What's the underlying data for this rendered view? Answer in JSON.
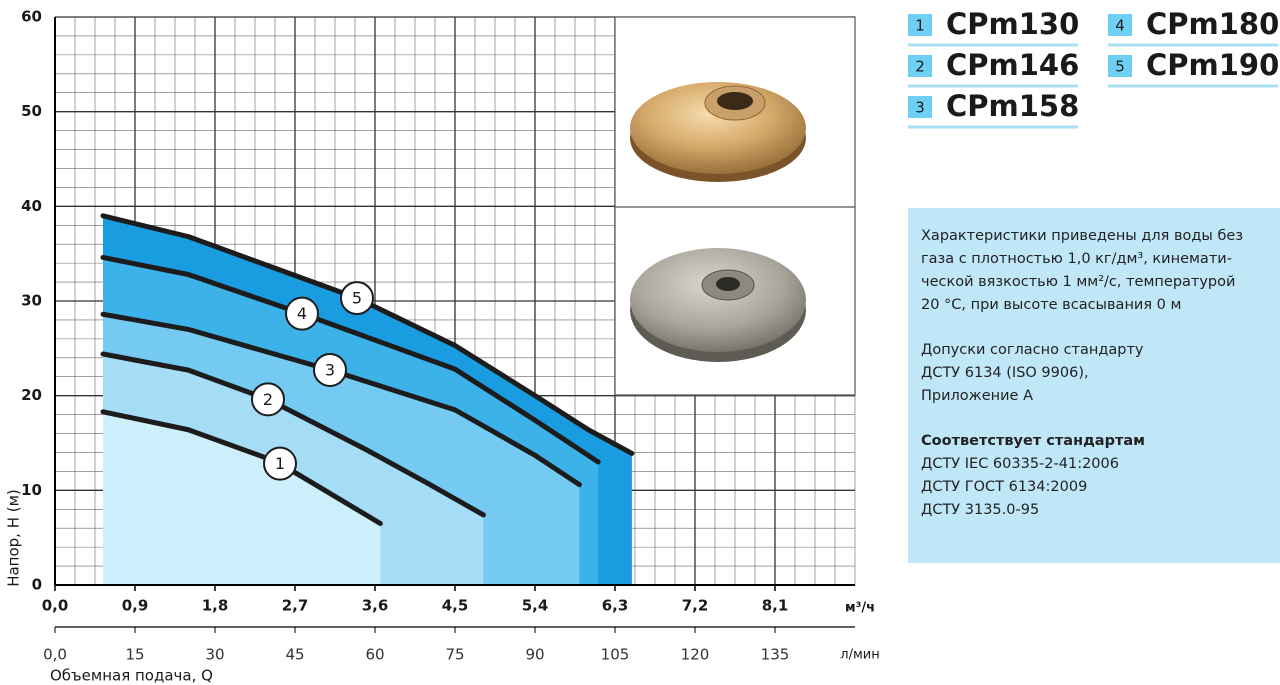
{
  "chart_data": {
    "type": "line",
    "y_label": "Напор, Н (м)",
    "x_unit": "м³/ч",
    "x2_unit": "л/мин",
    "x2_label": "Объемная подача, Q",
    "xlim": [
      0,
      9.0
    ],
    "ylim": [
      0,
      60
    ],
    "x2lim": [
      0,
      150
    ],
    "xticks": [
      {
        "value": 0,
        "label": "0,0"
      },
      {
        "value": 0.9,
        "label": "0,9"
      },
      {
        "value": 1.8,
        "label": "1,8"
      },
      {
        "value": 2.7,
        "label": "2,7"
      },
      {
        "value": 3.6,
        "label": "3,6"
      },
      {
        "value": 4.5,
        "label": "4,5"
      },
      {
        "value": 5.4,
        "label": "5,4"
      },
      {
        "value": 6.3,
        "label": "6,3"
      },
      {
        "value": 7.2,
        "label": "7,2"
      },
      {
        "value": 8.1,
        "label": "8,1"
      }
    ],
    "x2ticks": [
      {
        "value": 0,
        "label": "0,0"
      },
      15,
      30,
      45,
      60,
      75,
      90,
      105,
      120,
      135
    ],
    "yticks": [
      0,
      10,
      20,
      30,
      40,
      50,
      60
    ],
    "grid": true,
    "minor_grid": {
      "x": 4,
      "y": 5
    },
    "line_color": "#1c1c1c",
    "series": [
      {
        "label": "1",
        "name": "CPm130",
        "color": "#cdeefb",
        "x": [
          0.54,
          1.5,
          2.5,
          3.0,
          3.66
        ],
        "values": [
          18.3,
          16.4,
          13.0,
          10.2,
          6.5
        ]
      },
      {
        "label": "2",
        "name": "CPm146",
        "color": "#a6ddf6",
        "x": [
          0.54,
          1.5,
          2.4,
          3.5,
          4.2,
          4.82
        ],
        "values": [
          24.4,
          22.7,
          19.6,
          14.3,
          10.7,
          7.4
        ]
      },
      {
        "label": "3",
        "name": "CPm158",
        "color": "#74caf1",
        "x": [
          0.54,
          1.5,
          3.1,
          4.5,
          5.4,
          5.9
        ],
        "values": [
          28.6,
          27.0,
          22.7,
          18.5,
          13.7,
          10.6
        ]
      },
      {
        "label": "4",
        "name": "CPm180",
        "color": "#3cb2e9",
        "x": [
          0.54,
          1.5,
          2.8,
          4.5,
          5.4,
          6.11
        ],
        "values": [
          34.6,
          32.8,
          28.6,
          22.8,
          17.4,
          13.0
        ]
      },
      {
        "label": "5",
        "name": "CPm190",
        "color": "#1a9ce0",
        "x": [
          0.54,
          1.5,
          3.4,
          4.5,
          5.4,
          6.0,
          6.49
        ],
        "values": [
          39.0,
          36.8,
          30.3,
          25.3,
          20.0,
          16.4,
          13.9
        ]
      }
    ],
    "note": [
      [
        "Характеристики приведены для воды без",
        "газа с плотностью 1,0 кг/дм³, кинемати-",
        "ческой вязкостью 1 мм²/с, температурой",
        "20 °С, при высоте всасывания 0 м"
      ],
      [
        "Допуски согласно стандарту",
        "ДСТУ 6134 (ISO 9906),",
        "Приложение А"
      ],
      [
        "Соответствует стандартам",
        "ДСТУ IEC 60335-2-41:2006",
        "ДСТУ ГОСТ 6134:2009",
        "ДСТУ 3135.0-95"
      ]
    ]
  }
}
